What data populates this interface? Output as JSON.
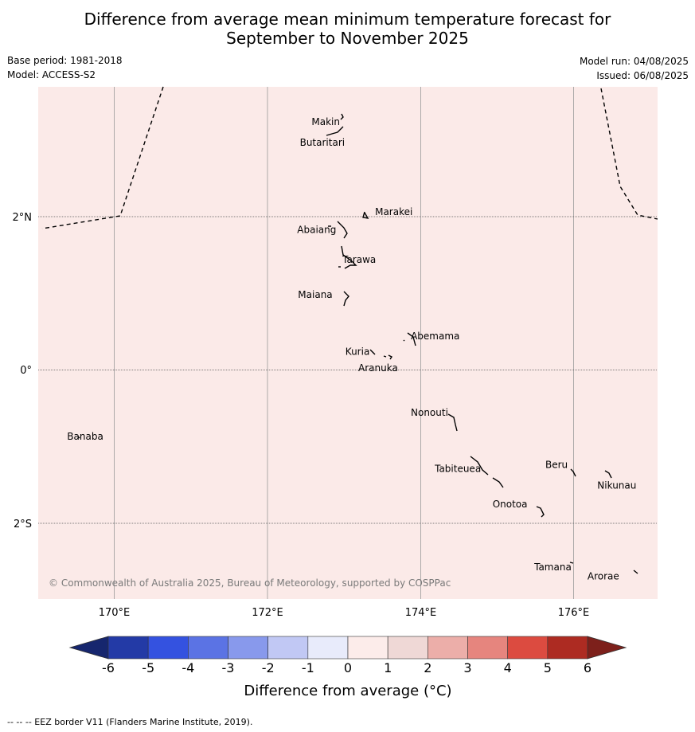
{
  "title": {
    "line1": "Difference from average mean minimum temperature forecast for",
    "line2": "September to November 2025"
  },
  "meta": {
    "base_period": "Base period: 1981-2018",
    "model": "Model: ACCESS-S2",
    "model_run": "Model run: 04/08/2025",
    "issued": "Issued: 06/08/2025"
  },
  "map": {
    "background_color": "#fbeae8",
    "anomaly_class": "0 to 1",
    "longitude_labels": [
      "170°E",
      "172°E",
      "174°E",
      "176°E"
    ],
    "latitude_labels": [
      "2°N",
      "0°",
      "2°S"
    ],
    "copyright": "© Commonwealth of Australia 2025, Bureau of Meteorology, supported by COSPPac",
    "islands": [
      {
        "name": "Makin",
        "lon": 172.95,
        "lat": 3.3
      },
      {
        "name": "Butaritari",
        "lon": 172.9,
        "lat": 3.05
      },
      {
        "name": "Marakei",
        "lon": 173.3,
        "lat": 2.0
      },
      {
        "name": "Abaiang",
        "lon": 173.0,
        "lat": 1.8
      },
      {
        "name": "Tarawa",
        "lon": 173.05,
        "lat": 1.4
      },
      {
        "name": "Maiana",
        "lon": 173.0,
        "lat": 0.95
      },
      {
        "name": "Abemama",
        "lon": 173.85,
        "lat": 0.4
      },
      {
        "name": "Kuria",
        "lon": 173.4,
        "lat": 0.22
      },
      {
        "name": "Aranuka",
        "lon": 173.6,
        "lat": 0.17
      },
      {
        "name": "Nonouti",
        "lon": 174.4,
        "lat": -0.65
      },
      {
        "name": "Banaba",
        "lon": 169.53,
        "lat": -0.87
      },
      {
        "name": "Tabiteuea",
        "lon": 174.9,
        "lat": -1.35
      },
      {
        "name": "Beru",
        "lon": 176.0,
        "lat": -1.33
      },
      {
        "name": "Nikunau",
        "lon": 176.45,
        "lat": -1.37
      },
      {
        "name": "Onotoa",
        "lon": 175.55,
        "lat": -1.8
      },
      {
        "name": "Tamana",
        "lon": 175.98,
        "lat": -2.5
      },
      {
        "name": "Arorae",
        "lon": 176.82,
        "lat": -2.64
      }
    ]
  },
  "colorbar": {
    "title": "Difference from average (°C)",
    "ticks": [
      "-6",
      "-5",
      "-4",
      "-3",
      "-2",
      "-1",
      "0",
      "1",
      "2",
      "3",
      "4",
      "5",
      "6"
    ],
    "colors": [
      "#233aa6",
      "#3452e0",
      "#5b73e4",
      "#8899ec",
      "#c1c8f4",
      "#e8ebfb",
      "#fcecea",
      "#efd8d6",
      "#ecaea9",
      "#e6857e",
      "#dc4b40",
      "#ad2b22"
    ],
    "under_color": "#16266e",
    "over_color": "#7d201b"
  },
  "footer": "-- -- -- EEZ border V11 (Flanders Marine Institute, 2019)."
}
